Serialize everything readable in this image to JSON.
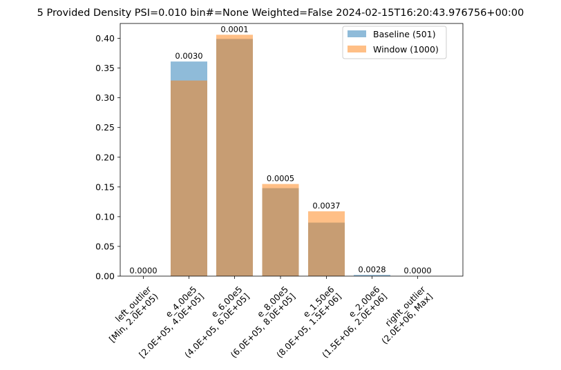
{
  "chart_data": {
    "type": "bar",
    "title": "5 Provided Density PSI=0.010 bin#=None Weighted=False 2024-02-15T16:20:43.976756+00:00",
    "xlabel": "",
    "ylabel": "",
    "ylim": [
      0,
      0.425
    ],
    "yticks": [
      "0.00",
      "0.05",
      "0.10",
      "0.15",
      "0.20",
      "0.25",
      "0.30",
      "0.35",
      "0.40"
    ],
    "categories": [
      [
        "left_outlier",
        "[Min, 2.0E+05)"
      ],
      [
        "e_4.00e5",
        "[2.0E+05, 4.0E+05]"
      ],
      [
        "e_6.00e5",
        "(4.0E+05, 6.0E+05]"
      ],
      [
        "e_8.00e5",
        "(6.0E+05, 8.0E+05]"
      ],
      [
        "e_1.50e6",
        "(8.0E+05, 1.5E+06]"
      ],
      [
        "e_2.00e6",
        "(1.5E+06, 2.0E+06]"
      ],
      [
        "right_outlier",
        "(2.0E+06, Max]"
      ]
    ],
    "series": [
      {
        "name": "Baseline (501)",
        "color": "#1f77b4",
        "values": [
          0.0,
          0.361,
          0.399,
          0.148,
          0.09,
          0.002,
          0.0
        ]
      },
      {
        "name": "Window (1000)",
        "color": "#ff7f0e",
        "values": [
          0.0,
          0.329,
          0.406,
          0.155,
          0.109,
          0.0,
          0.0
        ]
      }
    ],
    "bar_labels": [
      "0.0000",
      "0.0030",
      "0.0001",
      "0.0005",
      "0.0037",
      "0.0028",
      "0.0000"
    ],
    "legend_position": "top-right",
    "grid": false
  }
}
